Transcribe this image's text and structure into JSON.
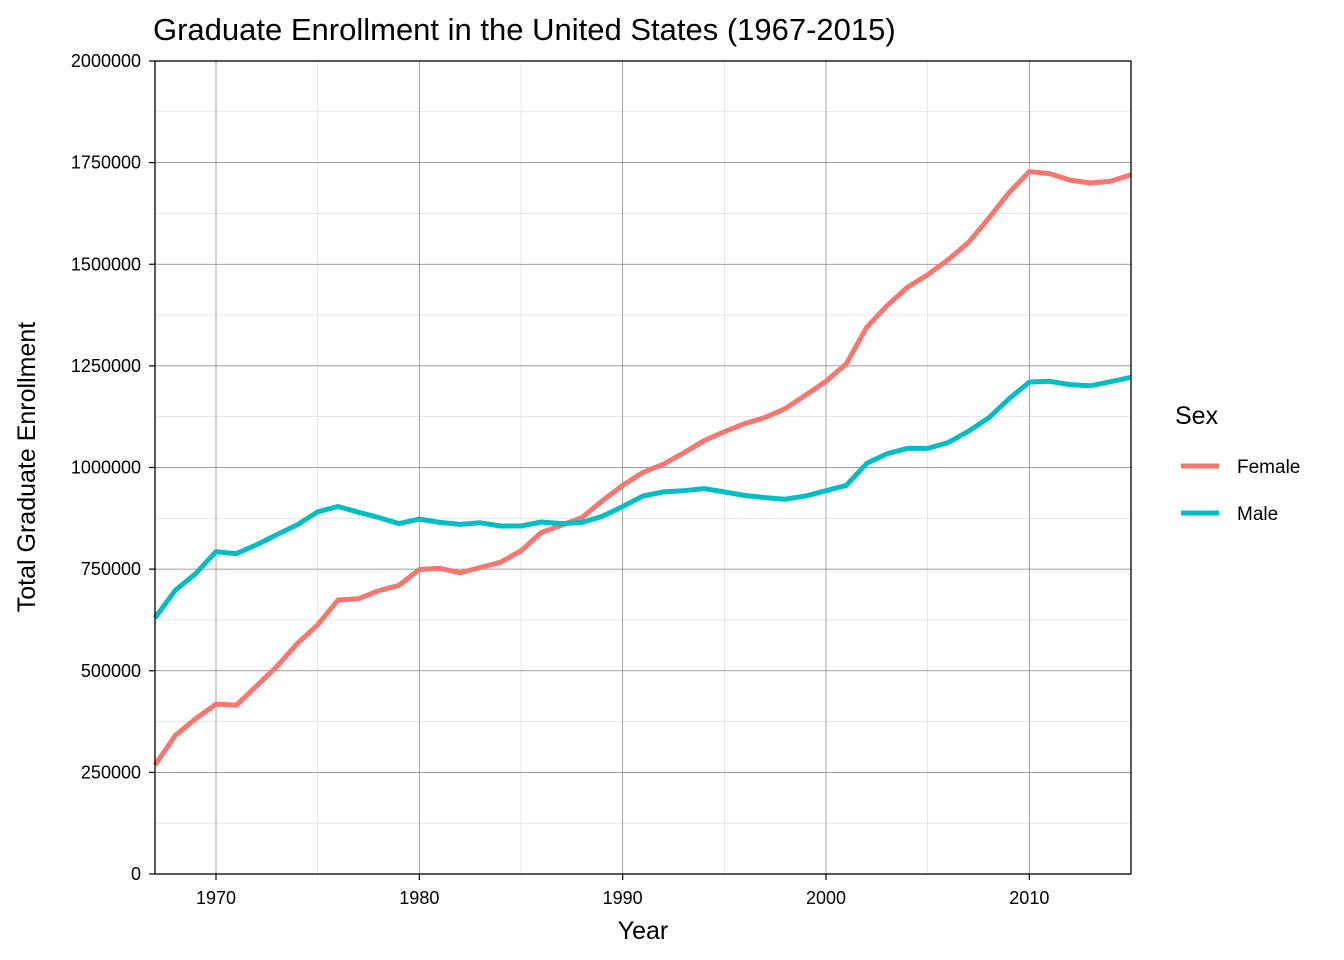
{
  "chart_data": {
    "type": "line",
    "title": "Graduate Enrollment in the United States (1967-2015)",
    "xlabel": "Year",
    "ylabel": "Total Graduate Enrollment",
    "xlim": [
      1967,
      2015
    ],
    "ylim": [
      0,
      2000000
    ],
    "x_ticks": [
      1970,
      1980,
      1990,
      2000,
      2010
    ],
    "y_ticks": [
      0,
      250000,
      500000,
      750000,
      1000000,
      1250000,
      1500000,
      1750000,
      2000000
    ],
    "grid": true,
    "legend": {
      "title": "Sex",
      "position": "right"
    },
    "x": [
      1967,
      1968,
      1969,
      1970,
      1971,
      1972,
      1973,
      1974,
      1975,
      1976,
      1977,
      1978,
      1979,
      1980,
      1981,
      1982,
      1983,
      1984,
      1985,
      1986,
      1987,
      1988,
      1989,
      1990,
      1991,
      1992,
      1993,
      1994,
      1995,
      1996,
      1997,
      1998,
      1999,
      2000,
      2001,
      2002,
      2003,
      2004,
      2005,
      2006,
      2007,
      2008,
      2009,
      2010,
      2011,
      2012,
      2013,
      2014,
      2015
    ],
    "series": [
      {
        "name": "Female",
        "color": "#F8766D",
        "values": [
          268000,
          341000,
          382000,
          418000,
          415000,
          463000,
          511000,
          567000,
          613000,
          674000,
          677000,
          697000,
          710000,
          749000,
          752000,
          741000,
          754000,
          767000,
          795000,
          840000,
          858000,
          877000,
          918000,
          956000,
          988000,
          1008000,
          1036000,
          1066000,
          1088000,
          1108000,
          1123000,
          1145000,
          1178000,
          1212000,
          1255000,
          1345000,
          1398000,
          1443000,
          1474000,
          1511000,
          1553000,
          1613000,
          1676000,
          1728000,
          1723000,
          1707000,
          1700000,
          1704000,
          1720000
        ]
      },
      {
        "name": "Male",
        "color": "#00BFC4",
        "values": [
          630000,
          698000,
          739000,
          793000,
          788000,
          810000,
          835000,
          859000,
          891000,
          904000,
          890000,
          877000,
          862000,
          873000,
          865000,
          860000,
          864000,
          856000,
          856000,
          866000,
          862000,
          865000,
          880000,
          904000,
          930000,
          940000,
          943000,
          948000,
          940000,
          931000,
          926000,
          922000,
          930000,
          943000,
          956000,
          1010000,
          1034000,
          1047000,
          1047000,
          1061000,
          1089000,
          1122000,
          1169000,
          1210000,
          1212000,
          1204000,
          1201000,
          1211000,
          1222000
        ]
      }
    ]
  }
}
